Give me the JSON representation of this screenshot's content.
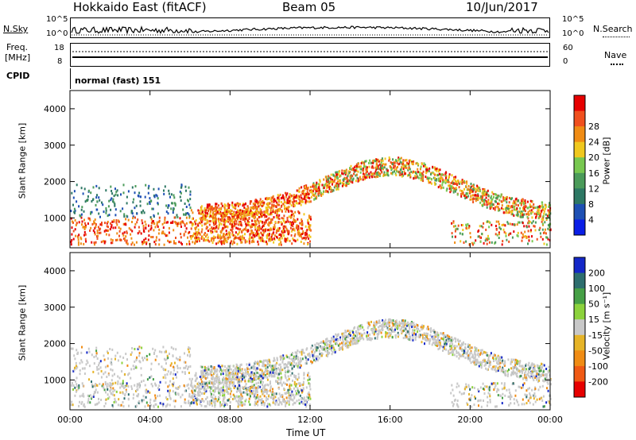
{
  "header": {
    "station": "Hokkaido East (fitACF)",
    "beam": "Beam 05",
    "date": "10/Jun/2017"
  },
  "top_panels": {
    "nsky_label": "N.Sky",
    "nsky_ticks": [
      "10^5",
      "10^0"
    ],
    "nsearch_label": "N.Search",
    "freq_label_1": "Freq.",
    "freq_label_2": "[MHz]",
    "freq_ticks": [
      "18",
      "8"
    ],
    "nave_label": "Nave",
    "nave_ticks": [
      "60",
      "0"
    ],
    "cpid_label": "CPID",
    "cpid_value": "normal (fast) 151"
  },
  "colors": {
    "power_scale": [
      "#0a1ee6",
      "#1e50b4",
      "#2d7864",
      "#4b9b5a",
      "#78c850",
      "#f0c81e",
      "#f08c14",
      "#f0501e",
      "#e60000"
    ],
    "velocity_scale": [
      "#1428c8",
      "#2d6e6e",
      "#46a046",
      "#8cd23c",
      "#c8c8c8",
      "#e6b428",
      "#f08c14",
      "#f05a14",
      "#e60000"
    ]
  },
  "chart_data": [
    {
      "type": "heatmap",
      "name": "power",
      "ylabel": "Slant Range [km]",
      "xlabel": "Time UT",
      "x_ticks": [
        "00:00",
        "04:00",
        "08:00",
        "12:00",
        "16:00",
        "20:00",
        "00:00"
      ],
      "y_ticks": [
        "1000",
        "2000",
        "3000",
        "4000"
      ],
      "ylim": [
        180,
        4500
      ],
      "colorbar_label": "Power [dB]",
      "colorbar_ticks": [
        "4",
        "8",
        "12",
        "16",
        "20",
        "24",
        "28"
      ]
    },
    {
      "type": "heatmap",
      "name": "velocity",
      "ylabel": "Slant Range [km]",
      "xlabel": "Time UT",
      "x_ticks": [
        "00:00",
        "04:00",
        "08:00",
        "12:00",
        "16:00",
        "20:00",
        "00:00"
      ],
      "y_ticks": [
        "1000",
        "2000",
        "3000",
        "4000"
      ],
      "ylim": [
        180,
        4500
      ],
      "colorbar_label": "Velocity [m s⁻¹]",
      "colorbar_ticks": [
        "200",
        "100",
        "50",
        "15",
        "-15",
        "-50",
        "-100",
        "-200"
      ]
    }
  ]
}
